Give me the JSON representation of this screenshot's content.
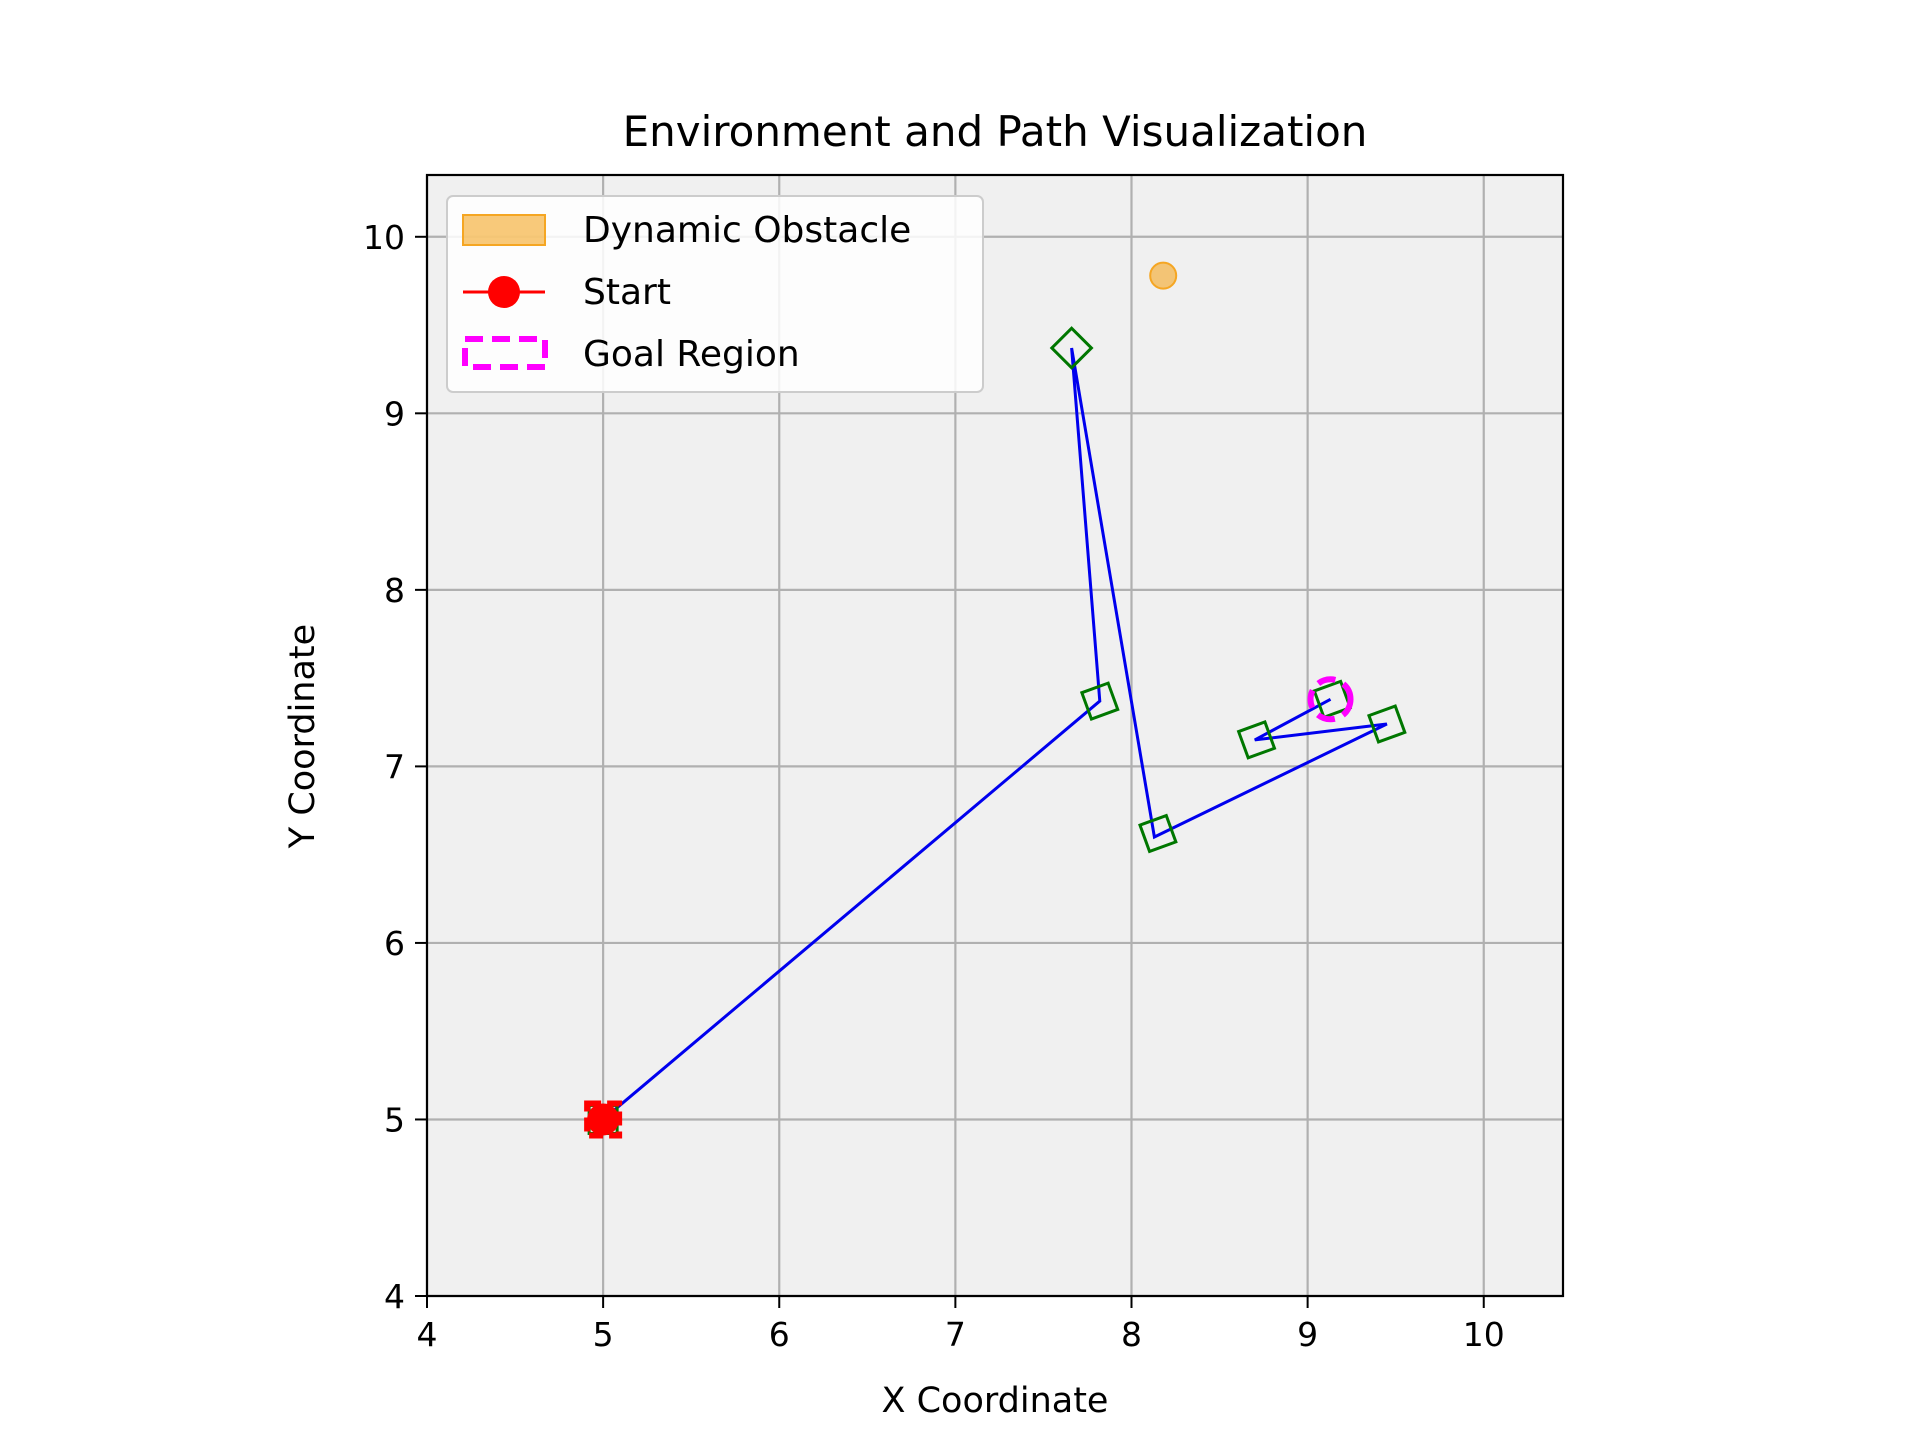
{
  "chart_data": {
    "type": "scatter",
    "title": "Environment and Path Visualization",
    "xlabel": "X Coordinate",
    "ylabel": "Y Coordinate",
    "xlim": [
      4,
      10.45
    ],
    "ylim": [
      4,
      10.35
    ],
    "xticks": [
      4,
      5,
      6,
      7,
      8,
      9,
      10
    ],
    "yticks": [
      4,
      5,
      6,
      7,
      8,
      9,
      10
    ],
    "grid": true,
    "legend_position": "upper-left",
    "legend": [
      {
        "label": "Dynamic Obstacle",
        "symbol": "patch",
        "color": "#f5a623"
      },
      {
        "label": "Start",
        "symbol": "line-circle",
        "color": "#ff0000"
      },
      {
        "label": "Goal Region",
        "symbol": "dashed-box",
        "color": "#ff00ff"
      }
    ],
    "path": {
      "color": "#0000ee",
      "points": [
        {
          "x": 5.0,
          "y": 5.0
        },
        {
          "x": 7.82,
          "y": 7.37
        },
        {
          "x": 7.66,
          "y": 9.37
        },
        {
          "x": 8.13,
          "y": 6.6
        },
        {
          "x": 9.45,
          "y": 7.24
        },
        {
          "x": 8.7,
          "y": 7.15
        },
        {
          "x": 9.13,
          "y": 7.38
        }
      ]
    },
    "robot_poses": {
      "color": "#007700",
      "points": [
        {
          "x": 5.0,
          "y": 5.0,
          "angle": 0
        },
        {
          "x": 7.82,
          "y": 7.37,
          "angle": 20
        },
        {
          "x": 7.66,
          "y": 9.37,
          "angle": 45
        },
        {
          "x": 8.15,
          "y": 6.62,
          "angle": 20
        },
        {
          "x": 9.45,
          "y": 7.24,
          "angle": 20
        },
        {
          "x": 8.71,
          "y": 7.15,
          "angle": 20
        },
        {
          "x": 9.14,
          "y": 7.38,
          "angle": 20
        }
      ]
    },
    "dynamic_obstacle": {
      "x": 8.18,
      "y": 9.78,
      "color": "#f5a623"
    },
    "start": {
      "x": 5.0,
      "y": 5.0,
      "color": "#ff0000"
    },
    "goal_region": {
      "x": 9.13,
      "y": 7.38,
      "color": "#ff00ff"
    }
  }
}
